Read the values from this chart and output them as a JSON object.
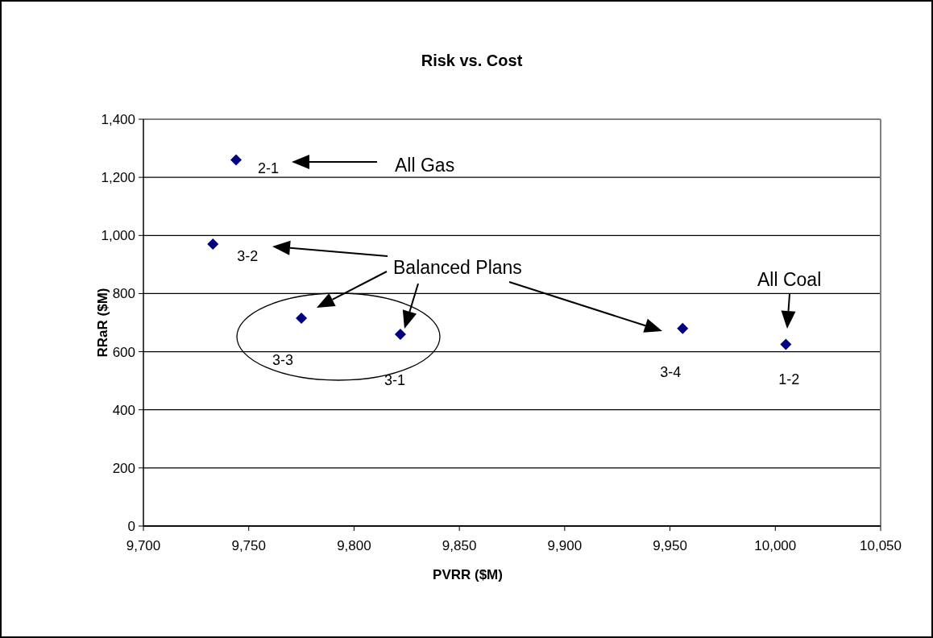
{
  "chart_data": {
    "type": "scatter",
    "title": "Risk vs. Cost",
    "xlabel": "PVRR ($M)",
    "ylabel": "RRaR ($M)",
    "x": [
      9744,
      9733,
      9775,
      9822,
      9956,
      10005
    ],
    "values": [
      1260,
      970,
      715,
      660,
      680,
      625
    ],
    "color": "#000080",
    "marker": "diamond",
    "grid": "y",
    "xlim": [
      9700,
      10050
    ],
    "xticks": [
      {
        "value": 9700,
        "label": "9,700"
      },
      {
        "value": 9750,
        "label": "9,750"
      },
      {
        "value": 9800,
        "label": "9,800"
      },
      {
        "value": 9850,
        "label": "9,850"
      },
      {
        "value": 9900,
        "label": "9,900"
      },
      {
        "value": 9950,
        "label": "9,950"
      },
      {
        "value": 10000,
        "label": "10,000"
      },
      {
        "value": 10050,
        "label": "10,050"
      }
    ],
    "ylim": [
      0,
      1400
    ],
    "yticks": [
      0,
      200,
      400,
      600,
      800,
      {
        "value": 1000,
        "label": "1,000"
      },
      {
        "value": 1200,
        "label": "1,200"
      },
      {
        "value": 1400,
        "label": "1,400"
      }
    ],
    "annotations": [
      {
        "text": "2-1",
        "x": 9744,
        "y": 1260
      },
      {
        "text": "3-2",
        "x": 9733,
        "y": 970
      },
      {
        "text": "3-3",
        "x": 9775,
        "y": 715
      },
      {
        "text": "3-1",
        "x": 9822,
        "y": 660
      },
      {
        "text": "3-4",
        "x": 9956,
        "y": 680
      },
      {
        "text": "1-2",
        "x": 10005,
        "y": 625
      },
      "All Gas",
      "Balanced Plans",
      "All Coal"
    ]
  }
}
